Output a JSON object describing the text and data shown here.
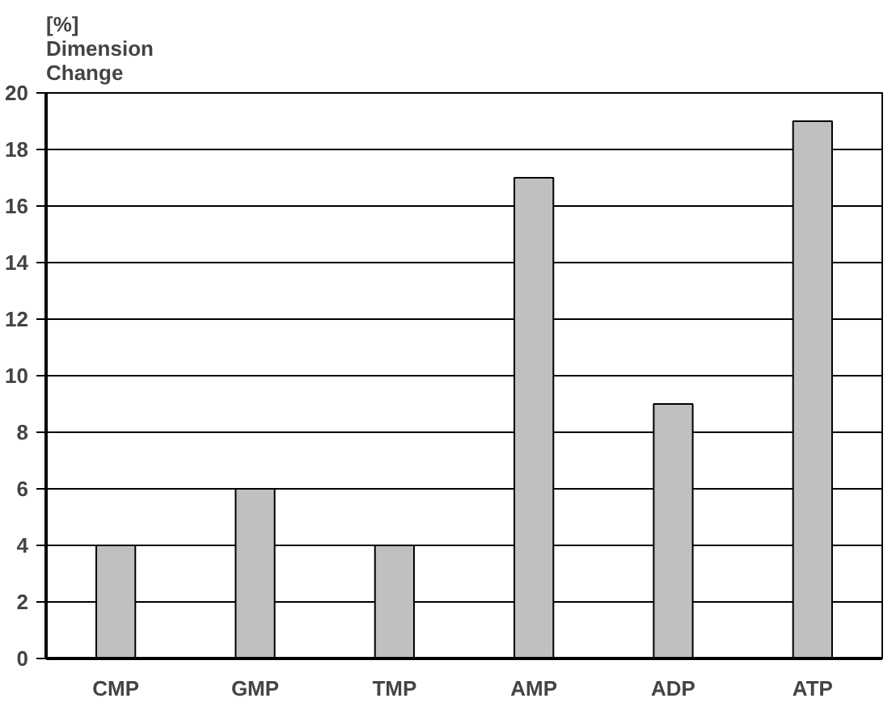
{
  "chart_data": {
    "type": "bar",
    "ylabel": "[%]\nDimension\nChange",
    "categories": [
      "CMP",
      "GMP",
      "TMP",
      "AMP",
      "ADP",
      "ATP"
    ],
    "values": [
      4,
      6,
      4,
      17,
      9,
      19
    ],
    "color": "#c0c0c0",
    "ylim": [
      0,
      20
    ],
    "yticks": [
      0,
      2,
      4,
      6,
      8,
      10,
      12,
      14,
      16,
      18,
      20
    ],
    "grid": "y"
  }
}
